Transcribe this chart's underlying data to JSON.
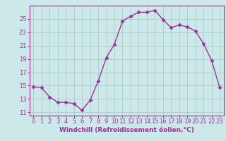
{
  "x": [
    0,
    1,
    2,
    3,
    4,
    5,
    6,
    7,
    8,
    9,
    10,
    11,
    12,
    13,
    14,
    15,
    16,
    17,
    18,
    19,
    20,
    21,
    22,
    23
  ],
  "y": [
    14.8,
    14.7,
    13.3,
    12.5,
    12.5,
    12.3,
    11.3,
    12.8,
    15.7,
    19.2,
    21.2,
    24.7,
    25.4,
    26.0,
    26.0,
    26.3,
    24.9,
    23.7,
    24.1,
    23.8,
    23.2,
    21.3,
    18.8,
    14.7
  ],
  "line_color": "#993399",
  "marker": "D",
  "marker_size": 2.5,
  "bg_color": "#cce8e8",
  "grid_color": "#aacccc",
  "xlabel": "Windchill (Refroidissement éolien,°C)",
  "ylim": [
    10.5,
    27.0
  ],
  "xlim": [
    -0.5,
    23.5
  ],
  "yticks": [
    11,
    13,
    15,
    17,
    19,
    21,
    23,
    25
  ],
  "xticks": [
    0,
    1,
    2,
    3,
    4,
    5,
    6,
    7,
    8,
    9,
    10,
    11,
    12,
    13,
    14,
    15,
    16,
    17,
    18,
    19,
    20,
    21,
    22,
    23
  ],
  "tick_color": "#993399",
  "label_fontsize": 6.5,
  "tick_fontsize": 6,
  "spine_color": "#993399",
  "line_width": 1.0
}
